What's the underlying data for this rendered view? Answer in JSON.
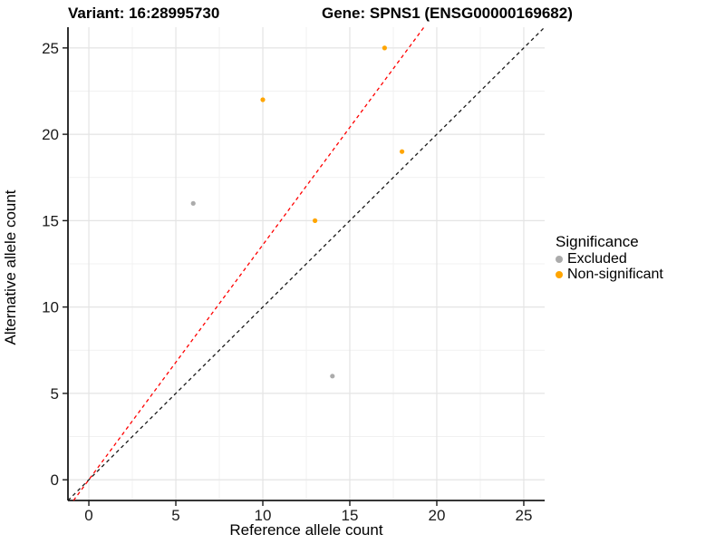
{
  "header": {
    "variant_title": "Variant: 16:28995730",
    "gene_title": "Gene: SPNS1 (ENSG00000169682)"
  },
  "legend": {
    "title": "Significance",
    "items": [
      {
        "label": "Excluded",
        "color": "#ABABAB"
      },
      {
        "label": "Non-significant",
        "color": "#FFA500"
      }
    ]
  },
  "chart_data": {
    "type": "scatter",
    "title": "Variant: 16:28995730   Gene: SPNS1 (ENSG00000169682)",
    "xlabel": "Reference allele count",
    "ylabel": "Alternative allele count",
    "xlim": [
      -1.2,
      26.2
    ],
    "ylim": [
      -1.2,
      26.2
    ],
    "x_ticks": [
      0,
      5,
      10,
      15,
      20,
      25
    ],
    "y_ticks": [
      0,
      5,
      10,
      15,
      20,
      25
    ],
    "x_minor_ticks": [
      2.5,
      7.5,
      12.5,
      17.5,
      22.5
    ],
    "y_minor_ticks": [
      2.5,
      7.5,
      12.5,
      17.5,
      22.5
    ],
    "grid": true,
    "legend_position": "right",
    "series": [
      {
        "name": "Excluded",
        "color": "#ABABAB",
        "points": [
          {
            "x": 6,
            "y": 16
          },
          {
            "x": 14,
            "y": 6
          }
        ]
      },
      {
        "name": "Non-significant",
        "color": "#FFA500",
        "points": [
          {
            "x": 10,
            "y": 22
          },
          {
            "x": 13,
            "y": 15
          },
          {
            "x": 17,
            "y": 25
          },
          {
            "x": 18,
            "y": 19
          }
        ]
      }
    ],
    "reference_lines": [
      {
        "name": "identity-line",
        "slope": 1.0,
        "intercept": 0,
        "color": "#1a1a1a",
        "style": "dashed"
      },
      {
        "name": "expected-ratio-line",
        "slope": 1.36,
        "intercept": 0,
        "color": "#FF0000",
        "style": "dashed"
      }
    ],
    "style": {
      "grid_major_color": "#E4E4E4",
      "grid_minor_color": "#F1F1F1",
      "axis_color": "#1a1a1a",
      "point_radius": 2.6
    }
  }
}
